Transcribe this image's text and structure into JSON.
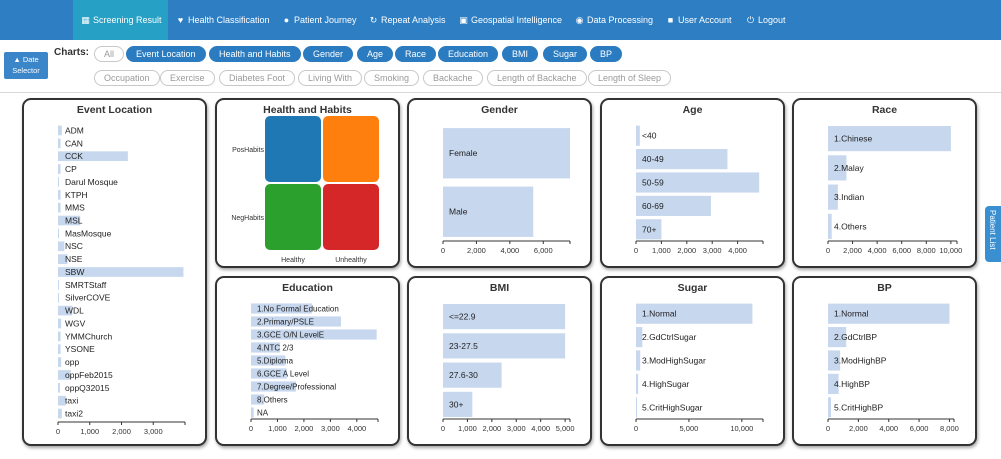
{
  "nav": {
    "items": [
      {
        "label": "Screening Result",
        "icon": "grid-icon",
        "active": true
      },
      {
        "label": "Health Classification",
        "icon": "heart-icon"
      },
      {
        "label": "Patient Journey",
        "icon": "person-icon"
      },
      {
        "label": "Repeat Analysis",
        "icon": "refresh-icon"
      },
      {
        "label": "Geospatial Intelligence",
        "icon": "picture-icon"
      },
      {
        "label": "Data Processing",
        "icon": "play-circle-icon"
      },
      {
        "label": "User Account",
        "icon": "lock-icon"
      },
      {
        "label": "Logout",
        "icon": "power-icon"
      }
    ]
  },
  "date_selector": {
    "line1": "▲ Date",
    "line2": "Selector"
  },
  "filters": {
    "label": "Charts:",
    "row1": [
      "All",
      "Event Location",
      "Health and Habits",
      "Gender",
      "Age",
      "Race",
      "Education",
      "BMI",
      "Sugar",
      "BP"
    ],
    "row1_active": [
      false,
      true,
      true,
      true,
      true,
      true,
      true,
      true,
      true,
      true
    ],
    "row2": [
      "Occupation",
      "Exercise",
      "Diabetes Foot",
      "Living With",
      "Smoking",
      "Backache",
      "Length of Backache",
      "Length of Sleep"
    ]
  },
  "side_tab": {
    "label": "Patient List"
  },
  "colors": {
    "bar": "#c6d7ee",
    "nav": "#2d7ec3",
    "nav_active": "#26a0c4",
    "pill_on": "#2a7bbf",
    "quad_blue": "#1f77b4",
    "quad_orange": "#ff7f0e",
    "quad_green": "#2ca02c",
    "quad_red": "#d62728"
  },
  "charts": {
    "event_location": {
      "title": "Event Location",
      "type": "bar",
      "categories": [
        "ADM",
        "CAN",
        "CCK",
        "CP",
        "Darul Mosque",
        "KTPH",
        "MMS",
        "MSL",
        "MasMosque",
        "NSC",
        "NSE",
        "SBW",
        "SMRTStaff",
        "SilverCOVE",
        "WDL",
        "WGV",
        "YMMChurch",
        "YSONE",
        "opp",
        "oppFeb2015",
        "oppQ32015",
        "taxi",
        "taxi2"
      ],
      "values": [
        120,
        80,
        2200,
        80,
        30,
        80,
        80,
        700,
        30,
        200,
        300,
        3950,
        30,
        30,
        450,
        100,
        80,
        80,
        100,
        400,
        60,
        250,
        120
      ],
      "ticks": [
        "0",
        "1,000",
        "2,000",
        "3,000"
      ],
      "xlim": [
        0,
        4000
      ]
    },
    "health_habits": {
      "title": "Health and Habits",
      "type": "heatmap",
      "rows": [
        "PosHabits",
        "NegHabits"
      ],
      "cols": [
        "Healthy",
        "Unhealthy"
      ]
    },
    "gender": {
      "title": "Gender",
      "type": "bar",
      "categories": [
        "Female",
        "Male"
      ],
      "values": [
        7600,
        5400
      ],
      "ticks": [
        "0",
        "2,000",
        "4,000",
        "6,000"
      ],
      "xlim": [
        0,
        7600
      ]
    },
    "age": {
      "title": "Age",
      "type": "bar",
      "categories": [
        "<40",
        "40-49",
        "50-59",
        "60-69",
        "70+"
      ],
      "values": [
        150,
        3600,
        4850,
        2950,
        1000
      ],
      "ticks": [
        "0",
        "1,000",
        "2,000",
        "3,000",
        "4,000"
      ],
      "xlim": [
        0,
        5000
      ]
    },
    "race": {
      "title": "Race",
      "type": "bar",
      "categories": [
        "1.Chinese",
        "2.Malay",
        "3.Indian",
        "4.Others"
      ],
      "values": [
        10000,
        1500,
        800,
        300
      ],
      "ticks": [
        "0",
        "2,000",
        "4,000",
        "6,000",
        "8,000",
        "10,000"
      ],
      "xlim": [
        0,
        10500
      ]
    },
    "education": {
      "title": "Education",
      "type": "bar",
      "categories": [
        "1.No Formal Education",
        "2.Primary/PSLE",
        "3.GCE O/N LevelE",
        "4.NTC 2/3",
        "5.Diploma",
        "6.GCE A Level",
        "7.Degree/Professional",
        "8.Others",
        "NA"
      ],
      "values": [
        2300,
        3400,
        4750,
        1100,
        1300,
        1350,
        1700,
        500,
        100
      ],
      "ticks": [
        "0",
        "1,000",
        "2,000",
        "3,000",
        "4,000"
      ],
      "xlim": [
        0,
        4800
      ]
    },
    "bmi": {
      "title": "BMI",
      "type": "bar",
      "categories": [
        "<=22.9",
        "23-27.5",
        "27.6-30",
        "30+"
      ],
      "values": [
        5000,
        5000,
        2400,
        1200
      ],
      "ticks": [
        "0",
        "1,000",
        "2,000",
        "3,000",
        "4,000",
        "5,000"
      ],
      "xlim": [
        0,
        5200
      ]
    },
    "sugar": {
      "title": "Sugar",
      "type": "bar",
      "categories": [
        "1.Normal",
        "2.GdCtrlSugar",
        "3.ModHighSugar",
        "4.HighSugar",
        "5.CritHighSugar"
      ],
      "values": [
        11000,
        600,
        400,
        200,
        100
      ],
      "ticks": [
        "0",
        "5,000",
        "10,000"
      ],
      "xlim": [
        0,
        12000
      ]
    },
    "bp": {
      "title": "BP",
      "type": "bar",
      "categories": [
        "1.Normal",
        "2.GdCtrlBP",
        "3.ModHighBP",
        "4.HighBP",
        "5.CritHighBP"
      ],
      "values": [
        8000,
        1200,
        800,
        700,
        200
      ],
      "ticks": [
        "0",
        "2,000",
        "4,000",
        "6,000",
        "8,000"
      ],
      "xlim": [
        0,
        8300
      ]
    }
  }
}
